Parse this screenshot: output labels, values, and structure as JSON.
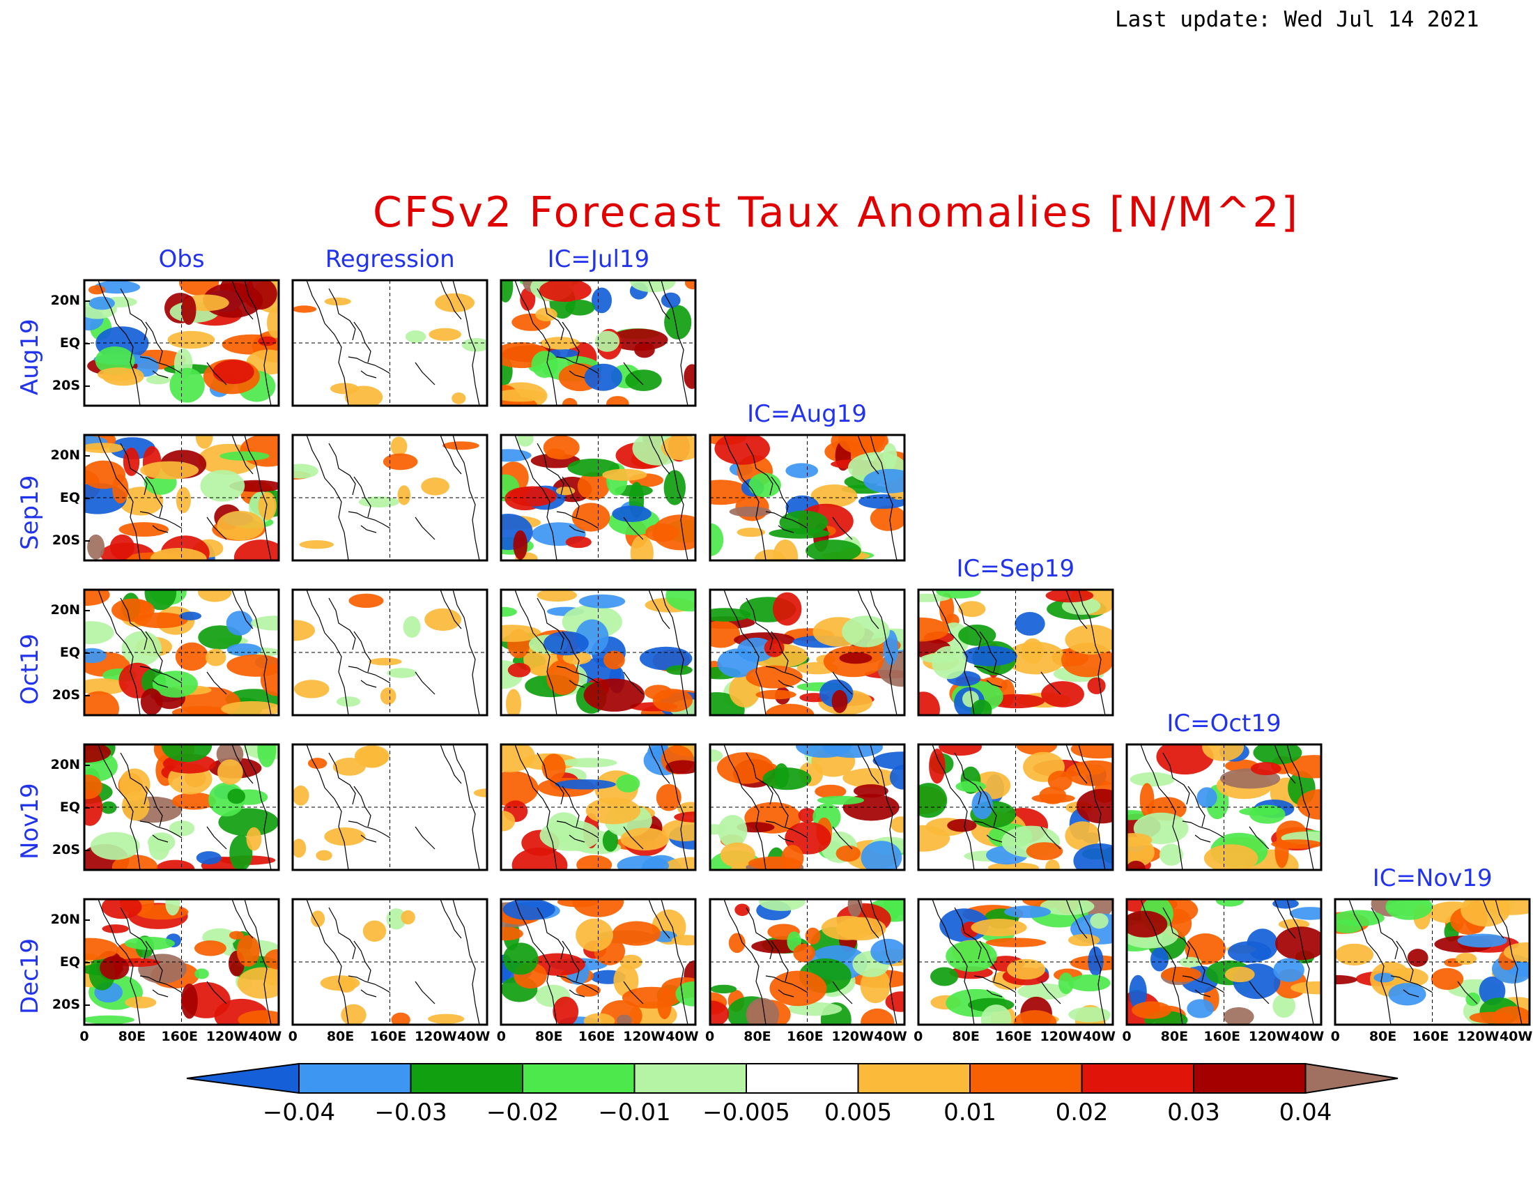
{
  "header": {
    "last_update": "Last update: Wed Jul 14 2021"
  },
  "title": "CFSv2 Forecast Taux Anomalies [N/M^2]",
  "columns": [
    "Obs",
    "Regression",
    "IC=Jul19",
    "IC=Aug19",
    "IC=Sep19",
    "IC=Oct19",
    "IC=Nov19"
  ],
  "rows": [
    "Aug19",
    "Sep19",
    "Oct19",
    "Nov19",
    "Dec19"
  ],
  "lat_ticks": [
    "20N",
    "EQ",
    "20S"
  ],
  "lon_ticks": [
    "0",
    "80E",
    "160E",
    "120W",
    "40W"
  ],
  "colorbar": {
    "labels": [
      "-0.04",
      "-0.03",
      "-0.02",
      "-0.01",
      "-0.005",
      "0.005",
      "0.01",
      "0.02",
      "0.03",
      "0.04"
    ],
    "colors": [
      "#1560d8",
      "#3c96f2",
      "#10a010",
      "#4ce84c",
      "#b4f4a4",
      "#ffffff",
      "#fbba3a",
      "#f86000",
      "#e01408",
      "#a40000",
      "#a07060"
    ]
  },
  "chart_data": {
    "type": "heatmap",
    "title": "CFSv2 Forecast Taux Anomalies [N/M^2]",
    "units": "N/M^2",
    "xlabel": "",
    "ylabel": "",
    "x_ticks": [
      "0",
      "80E",
      "160E",
      "120W",
      "40W"
    ],
    "y_ticks": [
      "20N",
      "EQ",
      "20S"
    ],
    "target_months": [
      "Aug19",
      "Sep19",
      "Oct19",
      "Nov19",
      "Dec19"
    ],
    "sources": [
      "Obs",
      "Regression",
      "IC=Jul19",
      "IC=Aug19",
      "IC=Sep19",
      "IC=Oct19",
      "IC=Nov19"
    ],
    "levels": [
      -0.04,
      -0.03,
      -0.02,
      -0.01,
      -0.005,
      0.005,
      0.01,
      0.02,
      0.03,
      0.04
    ]
  }
}
